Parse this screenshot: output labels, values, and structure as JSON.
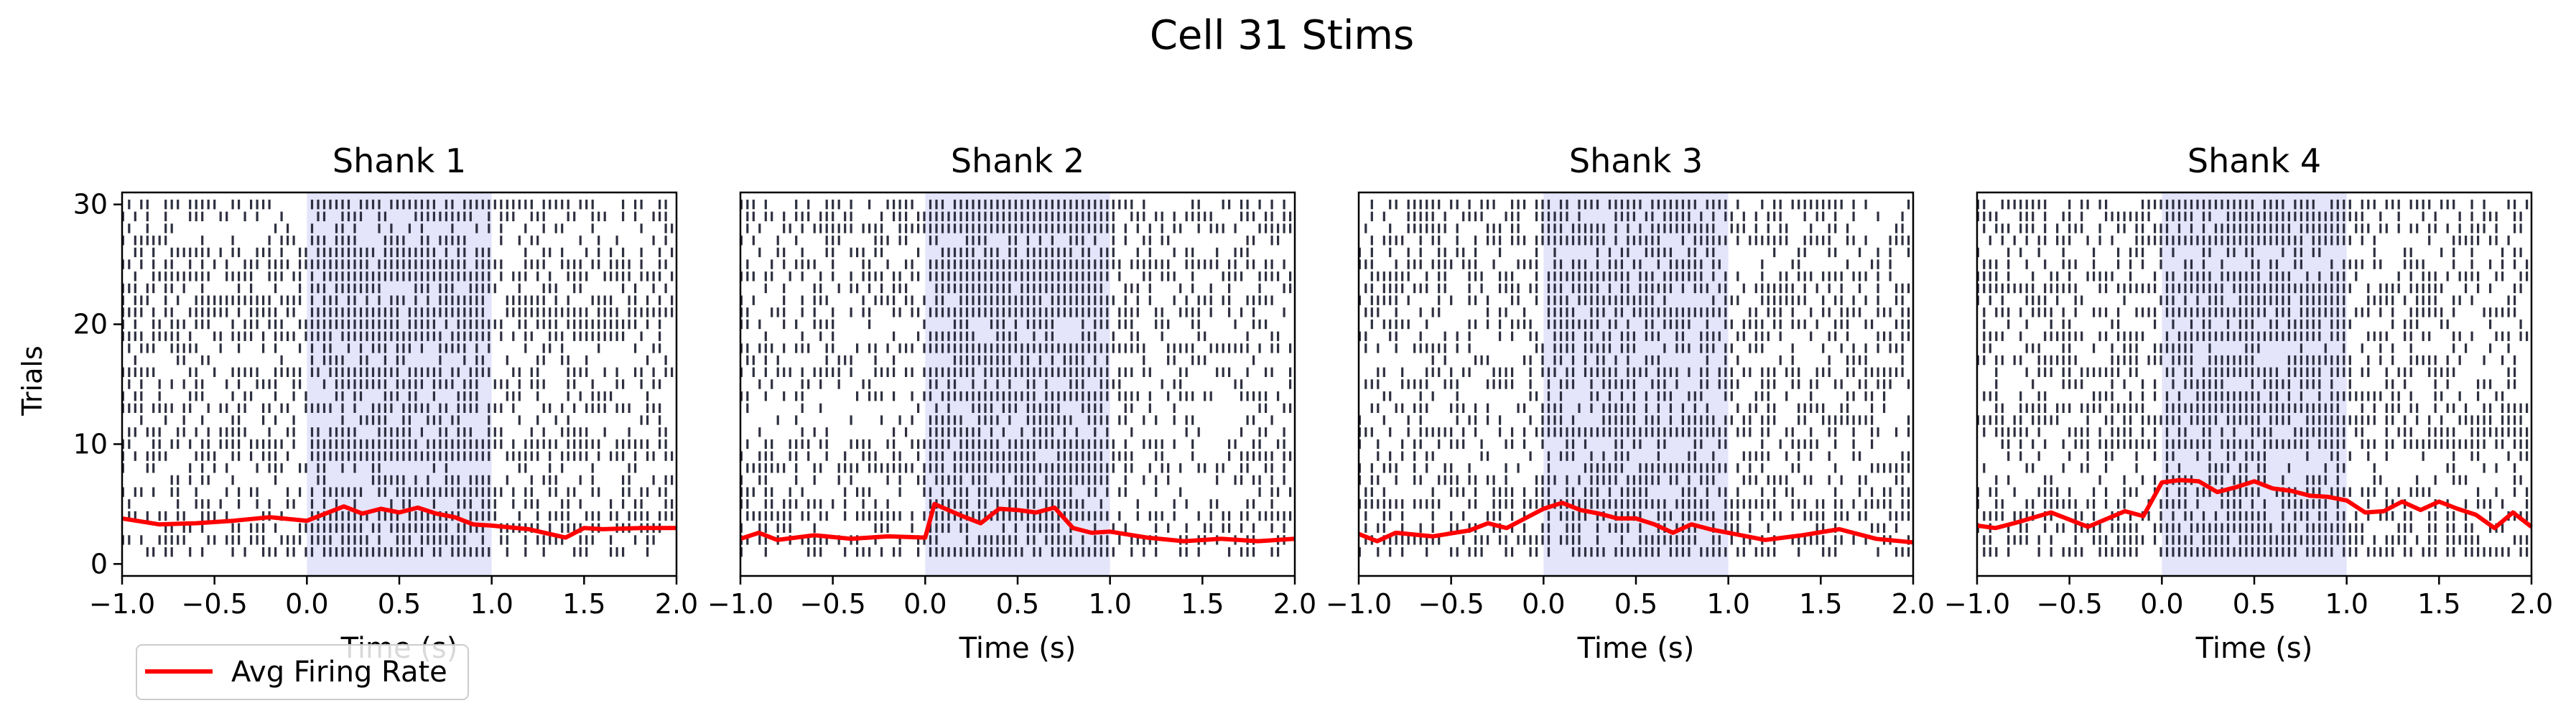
{
  "figure": {
    "title": "Cell 31 Stims",
    "ylabel": "Trials",
    "legend_label": "Avg Firing Rate"
  },
  "colors": {
    "spike": "#2e3040",
    "rate_line": "#ff0000",
    "stim_shade": "#e4e5fa",
    "axes": "#000000"
  },
  "chart_data": [
    {
      "type": "scatter",
      "title": "Shank 1",
      "xlabel": "Time (s)",
      "ylabel": "Trials",
      "xlim": [
        -1.0,
        2.0
      ],
      "ylim": [
        -1,
        31
      ],
      "xticks": [
        "−1.0",
        "−0.5",
        "0.0",
        "0.5",
        "1.0",
        "1.5",
        "2.0"
      ],
      "yticks": [
        "0",
        "10",
        "20",
        "30"
      ],
      "stimulus_window": [
        0.0,
        1.0
      ],
      "trials": 30,
      "spike_density": {
        "baseline": 0.5,
        "stimulus": 0.75
      },
      "avg_firing_rate": {
        "x": [
          -1.0,
          -0.8,
          -0.6,
          -0.4,
          -0.2,
          0.0,
          0.1,
          0.2,
          0.3,
          0.4,
          0.5,
          0.6,
          0.7,
          0.8,
          0.9,
          1.0,
          1.2,
          1.4,
          1.5,
          1.6,
          1.8,
          2.0
        ],
        "y": [
          3.8,
          3.3,
          3.4,
          3.6,
          3.9,
          3.6,
          4.2,
          4.8,
          4.2,
          4.6,
          4.3,
          4.7,
          4.2,
          3.9,
          3.3,
          3.2,
          2.9,
          2.2,
          3.0,
          2.9,
          3.0,
          3.0
        ]
      }
    },
    {
      "type": "scatter",
      "title": "Shank 2",
      "xlabel": "Time (s)",
      "xlim": [
        -1.0,
        2.0
      ],
      "ylim": [
        -1,
        31
      ],
      "xticks": [
        "−1.0",
        "−0.5",
        "0.0",
        "0.5",
        "1.0",
        "1.5",
        "2.0"
      ],
      "stimulus_window": [
        0.0,
        1.0
      ],
      "trials": 30,
      "spike_density": {
        "baseline": 0.45,
        "stimulus": 0.85
      },
      "avg_firing_rate": {
        "x": [
          -1.0,
          -0.9,
          -0.8,
          -0.6,
          -0.4,
          -0.2,
          0.0,
          0.05,
          0.2,
          0.3,
          0.4,
          0.5,
          0.6,
          0.7,
          0.8,
          0.9,
          1.0,
          1.2,
          1.4,
          1.6,
          1.8,
          2.0
        ],
        "y": [
          2.1,
          2.6,
          2.0,
          2.4,
          2.1,
          2.3,
          2.2,
          5.0,
          4.0,
          3.4,
          4.6,
          4.5,
          4.3,
          4.7,
          3.0,
          2.6,
          2.7,
          2.2,
          1.9,
          2.1,
          1.9,
          2.1
        ]
      }
    },
    {
      "type": "scatter",
      "title": "Shank 3",
      "xlabel": "Time (s)",
      "xlim": [
        -1.0,
        2.0
      ],
      "ylim": [
        -1,
        31
      ],
      "xticks": [
        "−1.0",
        "−0.5",
        "0.0",
        "0.5",
        "1.0",
        "1.5",
        "2.0"
      ],
      "stimulus_window": [
        0.0,
        1.0
      ],
      "trials": 30,
      "spike_density": {
        "baseline": 0.5,
        "stimulus": 0.7
      },
      "avg_firing_rate": {
        "x": [
          -1.0,
          -0.9,
          -0.8,
          -0.6,
          -0.4,
          -0.3,
          -0.2,
          -0.1,
          0.0,
          0.1,
          0.2,
          0.3,
          0.4,
          0.5,
          0.6,
          0.7,
          0.8,
          0.9,
          1.0,
          1.2,
          1.4,
          1.6,
          1.8,
          2.0
        ],
        "y": [
          2.5,
          1.9,
          2.6,
          2.3,
          2.8,
          3.4,
          3.0,
          3.8,
          4.6,
          5.1,
          4.5,
          4.2,
          3.8,
          3.8,
          3.3,
          2.6,
          3.3,
          2.9,
          2.6,
          2.0,
          2.4,
          2.9,
          2.1,
          1.8
        ]
      }
    },
    {
      "type": "scatter",
      "title": "Shank 4",
      "xlabel": "Time (s)",
      "xlim": [
        -1.0,
        2.0
      ],
      "ylim": [
        -1,
        31
      ],
      "xticks": [
        "−1.0",
        "−0.5",
        "0.0",
        "0.5",
        "1.0",
        "1.5",
        "2.0"
      ],
      "stimulus_window": [
        0.0,
        1.0
      ],
      "trials": 30,
      "spike_density": {
        "baseline": 0.55,
        "stimulus": 0.8
      },
      "avg_firing_rate": {
        "x": [
          -1.0,
          -0.9,
          -0.8,
          -0.6,
          -0.4,
          -0.2,
          -0.1,
          0.0,
          0.1,
          0.2,
          0.3,
          0.4,
          0.5,
          0.6,
          0.7,
          0.8,
          0.9,
          1.0,
          1.1,
          1.2,
          1.3,
          1.4,
          1.5,
          1.6,
          1.7,
          1.8,
          1.9,
          2.0
        ],
        "y": [
          3.2,
          3.0,
          3.4,
          4.3,
          3.1,
          4.4,
          4.0,
          6.8,
          7.0,
          6.9,
          6.0,
          6.4,
          6.9,
          6.3,
          6.1,
          5.7,
          5.6,
          5.3,
          4.3,
          4.4,
          5.2,
          4.5,
          5.2,
          4.6,
          4.1,
          3.0,
          4.3,
          3.1
        ]
      }
    }
  ]
}
